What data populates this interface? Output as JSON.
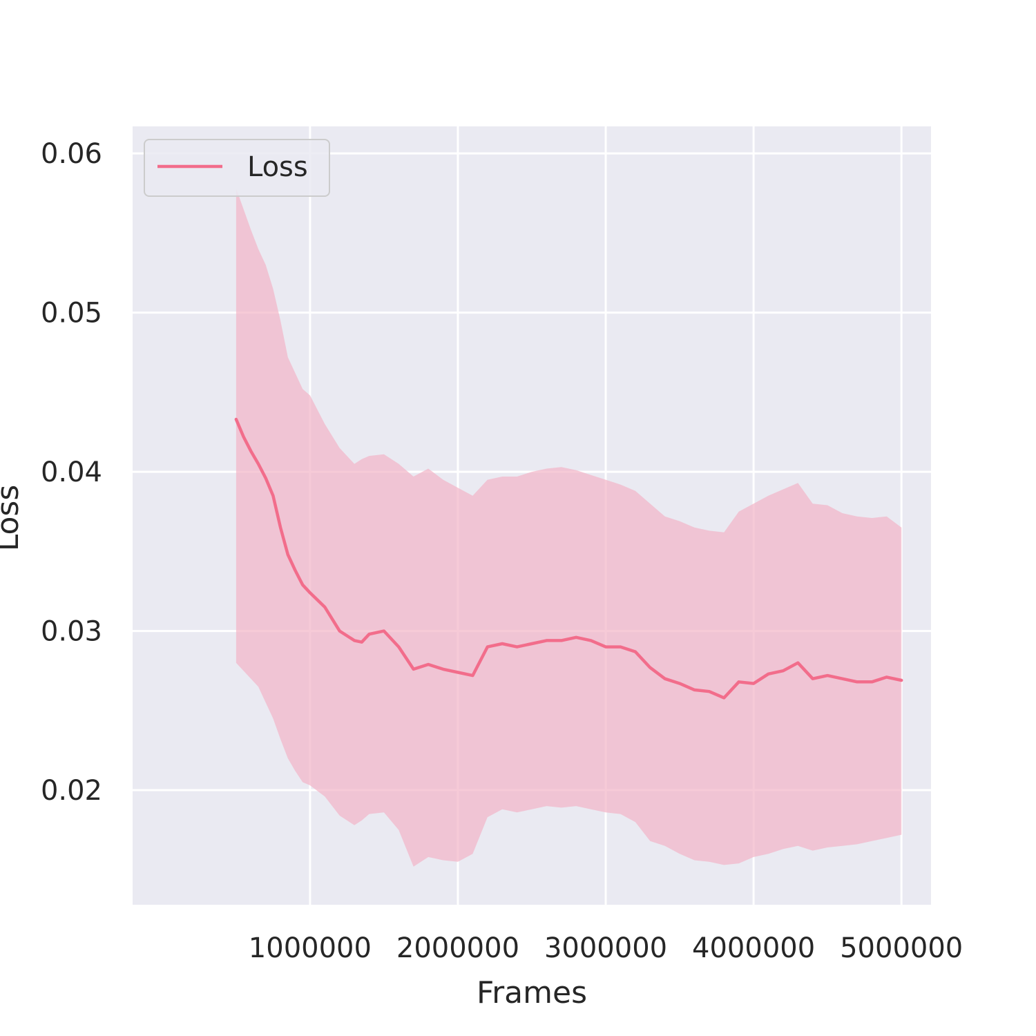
{
  "chart_data": {
    "type": "line",
    "title": "",
    "xlabel": "Frames",
    "ylabel": "Loss",
    "xlim": [
      -200000,
      5200000
    ],
    "ylim": [
      0.0128,
      0.0617
    ],
    "xticks": [
      1000000,
      2000000,
      3000000,
      4000000,
      5000000
    ],
    "xtick_labels": [
      "1000000",
      "2000000",
      "3000000",
      "4000000",
      "5000000"
    ],
    "yticks": [
      0.02,
      0.03,
      0.04,
      0.05,
      0.06
    ],
    "ytick_labels": [
      "0.02",
      "0.03",
      "0.04",
      "0.05",
      "0.06"
    ],
    "grid": true,
    "legend": {
      "position": "upper-left",
      "entries": [
        "Loss"
      ]
    },
    "colors": {
      "line": "#f26d8b",
      "band": "#f2b5c8",
      "background": "#eaeaf2",
      "grid": "#ffffff"
    },
    "series": [
      {
        "name": "Loss",
        "x": [
          500000,
          550000,
          600000,
          650000,
          700000,
          750000,
          800000,
          850000,
          900000,
          950000,
          1000000,
          1100000,
          1200000,
          1300000,
          1350000,
          1400000,
          1500000,
          1600000,
          1700000,
          1800000,
          1900000,
          2000000,
          2100000,
          2200000,
          2300000,
          2400000,
          2500000,
          2600000,
          2700000,
          2800000,
          2900000,
          3000000,
          3100000,
          3200000,
          3300000,
          3400000,
          3500000,
          3600000,
          3700000,
          3800000,
          3900000,
          4000000,
          4100000,
          4200000,
          4300000,
          4400000,
          4500000,
          4600000,
          4700000,
          4800000,
          4900000,
          5000000
        ],
        "y": [
          0.0433,
          0.0422,
          0.0413,
          0.0405,
          0.0396,
          0.0385,
          0.0365,
          0.0348,
          0.0338,
          0.0329,
          0.0324,
          0.0315,
          0.03,
          0.0294,
          0.0293,
          0.0298,
          0.03,
          0.029,
          0.0276,
          0.0279,
          0.0276,
          0.0274,
          0.0272,
          0.029,
          0.0292,
          0.029,
          0.0292,
          0.0294,
          0.0294,
          0.0296,
          0.0294,
          0.029,
          0.029,
          0.0287,
          0.0277,
          0.027,
          0.0267,
          0.0263,
          0.0262,
          0.0258,
          0.0268,
          0.0267,
          0.0273,
          0.0275,
          0.028,
          0.027,
          0.0272,
          0.027,
          0.0268,
          0.0268,
          0.0271,
          0.0269
        ],
        "lower": [
          0.028,
          0.0275,
          0.027,
          0.0265,
          0.0255,
          0.0245,
          0.0232,
          0.022,
          0.0212,
          0.0205,
          0.0203,
          0.0196,
          0.0184,
          0.0178,
          0.0181,
          0.0185,
          0.0186,
          0.0175,
          0.0152,
          0.0158,
          0.0156,
          0.0155,
          0.016,
          0.0183,
          0.0188,
          0.0186,
          0.0188,
          0.019,
          0.0189,
          0.019,
          0.0188,
          0.0186,
          0.0185,
          0.018,
          0.0168,
          0.0165,
          0.016,
          0.0156,
          0.0155,
          0.0153,
          0.0154,
          0.0158,
          0.016,
          0.0163,
          0.0165,
          0.0162,
          0.0164,
          0.0165,
          0.0166,
          0.0168,
          0.017,
          0.0172
        ],
        "upper": [
          0.0578,
          0.0565,
          0.0552,
          0.054,
          0.053,
          0.0515,
          0.0495,
          0.0472,
          0.0462,
          0.0452,
          0.0448,
          0.043,
          0.0415,
          0.0405,
          0.0408,
          0.041,
          0.0411,
          0.0405,
          0.0397,
          0.0402,
          0.0395,
          0.039,
          0.0385,
          0.0395,
          0.0397,
          0.0397,
          0.04,
          0.0402,
          0.0403,
          0.0401,
          0.0398,
          0.0395,
          0.0392,
          0.0388,
          0.038,
          0.0372,
          0.0369,
          0.0365,
          0.0363,
          0.0362,
          0.0375,
          0.038,
          0.0385,
          0.0389,
          0.0393,
          0.038,
          0.0379,
          0.0374,
          0.0372,
          0.0371,
          0.0372,
          0.0365
        ]
      }
    ]
  }
}
